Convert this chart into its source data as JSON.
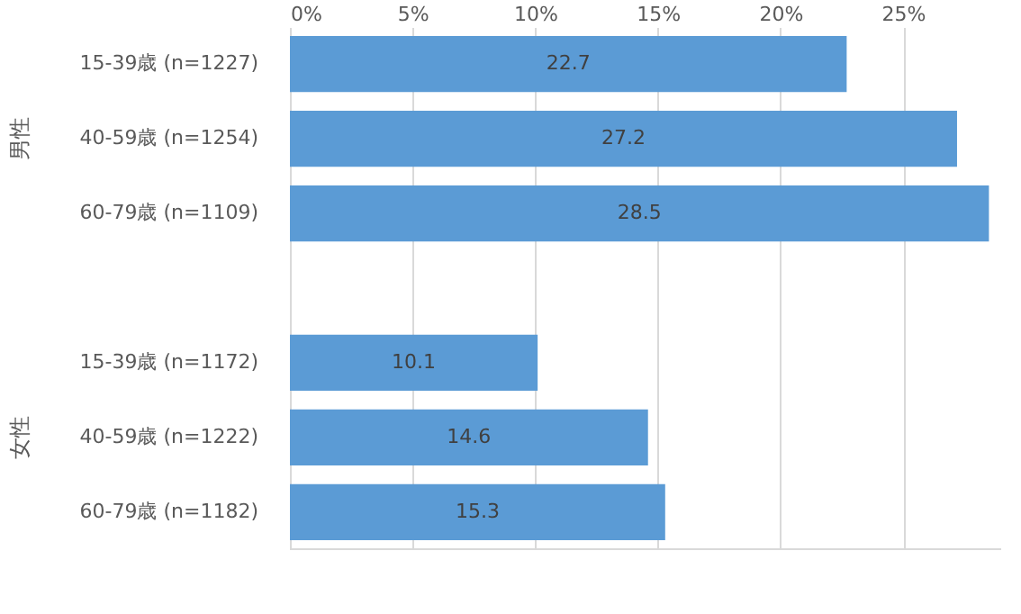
{
  "chart_data": {
    "type": "bar",
    "orientation": "horizontal",
    "categories": [
      "15-39歳 (n=1227)",
      "40-59歳 (n=1254)",
      "60-79歳 (n=1109)",
      null,
      "15-39歳 (n=1172)",
      "40-59歳 (n=1222)",
      "60-79歳 (n=1182)"
    ],
    "values": [
      22.7,
      27.2,
      28.5,
      null,
      10.1,
      14.6,
      15.3
    ],
    "color": "#5b9bd5",
    "xlim": [
      0,
      29
    ],
    "xticks": [
      {
        "value": 0,
        "label": "0%"
      },
      {
        "value": 5,
        "label": "5%"
      },
      {
        "value": 10,
        "label": "10%"
      },
      {
        "value": 15,
        "label": "15%"
      },
      {
        "value": 20,
        "label": "20%"
      },
      {
        "value": 25,
        "label": "25%"
      }
    ],
    "grid": "x",
    "data_labels": true,
    "annotations": [
      "男性",
      "女性"
    ]
  }
}
